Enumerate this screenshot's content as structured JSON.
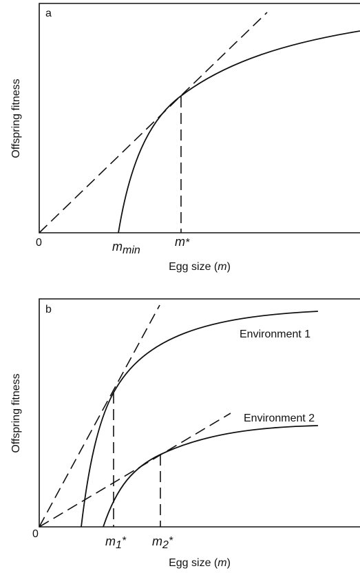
{
  "panels": [
    {
      "label": "a",
      "y_label": "Offspring fitness",
      "x_label": [
        "Egg size (",
        "m",
        ")"
      ],
      "origin": "0",
      "markers": [
        {
          "base": "m",
          "sub": "min"
        },
        {
          "base": "m",
          "sup": "*"
        }
      ]
    },
    {
      "label": "b",
      "y_label": "Offspring fitness",
      "x_label": [
        "Egg size (",
        "m",
        ")"
      ],
      "origin": "0",
      "markers": [
        {
          "base": "m",
          "sub": "1",
          "sup": "*"
        },
        {
          "base": "m",
          "sub": "2",
          "sup": "*"
        }
      ],
      "curve_labels": [
        "Environment 1",
        "Environment 2"
      ]
    }
  ]
}
